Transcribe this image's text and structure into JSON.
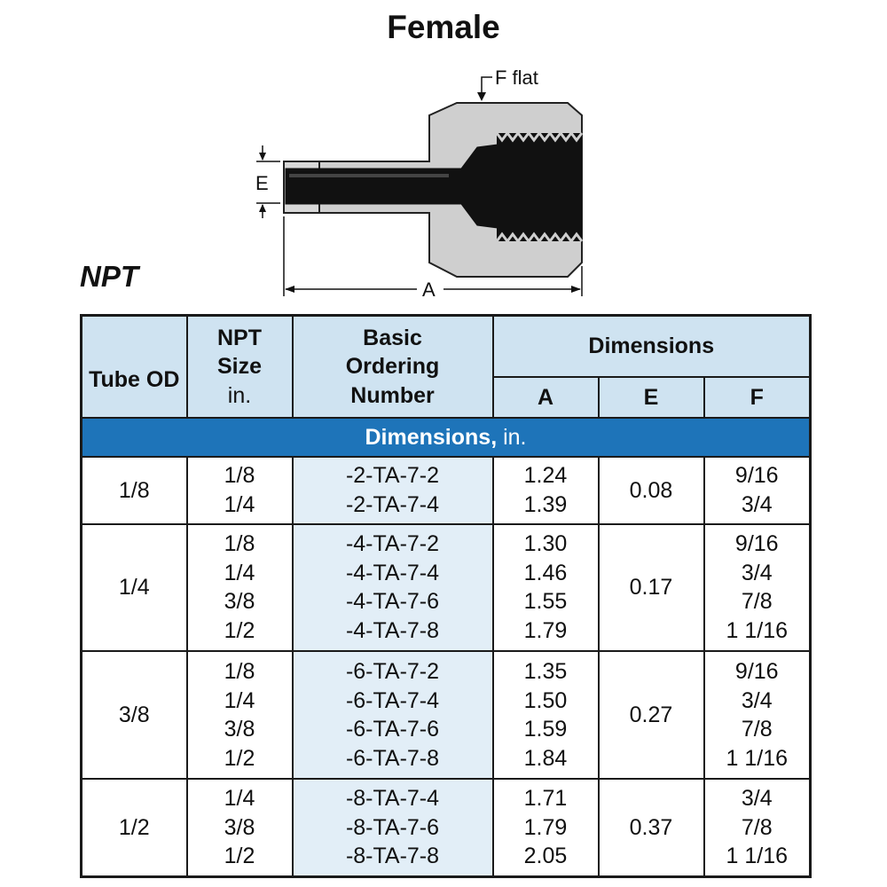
{
  "title": "Female",
  "standard": "NPT",
  "diagram": {
    "label_f": "F flat",
    "label_e": "E",
    "label_a": "A"
  },
  "table": {
    "headers": {
      "tube_od": "Tube OD",
      "npt_size": "NPT Size",
      "npt_unit": "in.",
      "basic_ordering": "Basic Ordering Number",
      "dimensions": "Dimensions",
      "a": "A",
      "e": "E",
      "f": "F"
    },
    "band": {
      "label": "Dimensions,",
      "unit": " in."
    },
    "rows": [
      {
        "tube_od": "1/8",
        "npt": "1/8\n1/4",
        "order": "-2-TA-7-2\n-2-TA-7-4",
        "a": "1.24\n1.39",
        "e": "0.08",
        "f": "9/16\n3/4"
      },
      {
        "tube_od": "1/4",
        "npt": "1/8\n1/4\n3/8\n1/2",
        "order": "-4-TA-7-2\n-4-TA-7-4\n-4-TA-7-6\n-4-TA-7-8",
        "a": "1.30\n1.46\n1.55\n1.79",
        "e": "0.17",
        "f": "9/16\n3/4\n7/8\n1 1/16"
      },
      {
        "tube_od": "3/8",
        "npt": "1/8\n1/4\n3/8\n1/2",
        "order": "-6-TA-7-2\n-6-TA-7-4\n-6-TA-7-6\n-6-TA-7-8",
        "a": "1.35\n1.50\n1.59\n1.84",
        "e": "0.27",
        "f": "9/16\n3/4\n7/8\n1 1/16"
      },
      {
        "tube_od": "1/2",
        "npt": "1/4\n3/8\n1/2",
        "order": "-8-TA-7-4\n-8-TA-7-6\n-8-TA-7-8",
        "a": "1.71\n1.79\n2.05",
        "e": "0.37",
        "f": "3/4\n7/8\n1 1/16"
      }
    ]
  }
}
